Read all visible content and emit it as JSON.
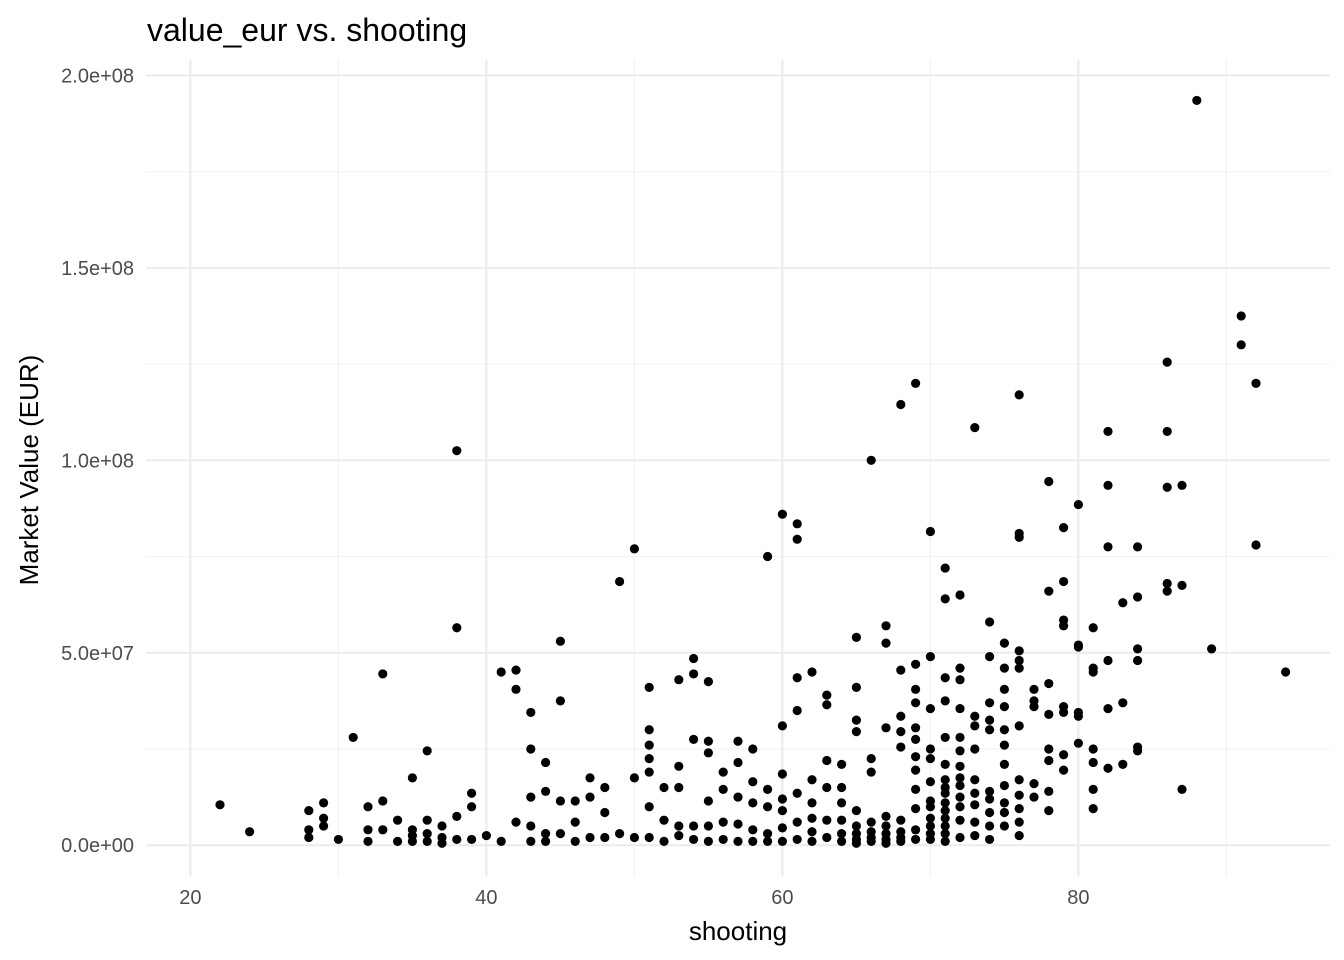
{
  "chart_data": {
    "type": "scatter",
    "title": "value_eur vs. shooting",
    "xlabel": "shooting",
    "ylabel": "Market Value (EUR)",
    "xlim": [
      17,
      97
    ],
    "ylim": [
      -8000000,
      204000000
    ],
    "x_ticks": [
      20,
      40,
      60,
      80
    ],
    "x_tick_labels": [
      "20",
      "40",
      "60",
      "80"
    ],
    "y_ticks": [
      0,
      50000000,
      100000000,
      150000000,
      200000000
    ],
    "y_tick_labels": [
      "0.0e+00",
      "5.0e+07",
      "1.0e+08",
      "1.5e+08",
      "2.0e+08"
    ],
    "grid": true,
    "legend": "none",
    "point_color": "#000000",
    "x": [
      22,
      24,
      28,
      28,
      28,
      29,
      29,
      29,
      30,
      31,
      32,
      32,
      32,
      33,
      33,
      33,
      34,
      34,
      35,
      35,
      35,
      35,
      36,
      36,
      36,
      36,
      37,
      37,
      37,
      38,
      38,
      38,
      38,
      39,
      39,
      39,
      40,
      41,
      41,
      42,
      42,
      42,
      43,
      43,
      43,
      43,
      43,
      44,
      44,
      44,
      44,
      45,
      45,
      45,
      45,
      46,
      46,
      46,
      47,
      47,
      47,
      48,
      48,
      48,
      49,
      49,
      50,
      50,
      50,
      51,
      51,
      51,
      51,
      51,
      51,
      51,
      52,
      52,
      52,
      53,
      53,
      53,
      53,
      53,
      54,
      54,
      54,
      54,
      54,
      55,
      55,
      55,
      55,
      55,
      55,
      56,
      56,
      56,
      56,
      57,
      57,
      57,
      57,
      57,
      58,
      58,
      58,
      58,
      58,
      59,
      59,
      59,
      59,
      59,
      60,
      60,
      60,
      60,
      60,
      60,
      60,
      61,
      61,
      61,
      61,
      61,
      61,
      61,
      62,
      62,
      62,
      62,
      62,
      62,
      63,
      63,
      63,
      63,
      63,
      63,
      64,
      64,
      64,
      64,
      64,
      64,
      65,
      65,
      65,
      65,
      65,
      65,
      65,
      65,
      65,
      66,
      66,
      66,
      66,
      66,
      66,
      66,
      67,
      67,
      67,
      67,
      67,
      67,
      67,
      67,
      68,
      68,
      68,
      68,
      68,
      68,
      68,
      68,
      68,
      69,
      69,
      69,
      69,
      69,
      69,
      69,
      69,
      69,
      69,
      69,
      69,
      70,
      70,
      70,
      70,
      70,
      70,
      70,
      70,
      70,
      70,
      70,
      70,
      71,
      71,
      71,
      71,
      71,
      71,
      71,
      71,
      71,
      71,
      71,
      71,
      71,
      71,
      71,
      72,
      72,
      72,
      72,
      72,
      72,
      72,
      72,
      72,
      72,
      72,
      72,
      72,
      73,
      73,
      73,
      73,
      73,
      73,
      73,
      73,
      73,
      74,
      74,
      74,
      74,
      74,
      74,
      74,
      74,
      74,
      74,
      75,
      75,
      75,
      75,
      75,
      75,
      75,
      75,
      75,
      75,
      75,
      76,
      76,
      76,
      76,
      76,
      76,
      76,
      76,
      76,
      76,
      76,
      76,
      77,
      77,
      77,
      77,
      77,
      78,
      78,
      78,
      78,
      78,
      78,
      78,
      78,
      79,
      79,
      79,
      79,
      79,
      79,
      79,
      79,
      80,
      80,
      80,
      80,
      80,
      80,
      81,
      81,
      81,
      81,
      81,
      81,
      81,
      82,
      82,
      82,
      82,
      82,
      82,
      83,
      83,
      83,
      84,
      84,
      84,
      84,
      84,
      84,
      86,
      86,
      86,
      86,
      86,
      87,
      87,
      87,
      88,
      89,
      91,
      91,
      92,
      92,
      94
    ],
    "y": [
      10500000,
      3500000,
      9000000,
      4000000,
      2000000,
      11000000,
      7000000,
      5000000,
      1500000,
      28000000,
      10000000,
      4000000,
      1000000,
      44500000,
      11500000,
      4000000,
      6500000,
      1000000,
      17500000,
      4000000,
      2500000,
      1000000,
      24500000,
      6500000,
      3000000,
      1000000,
      5000000,
      2000000,
      500000,
      102500000,
      56500000,
      7500000,
      1500000,
      13500000,
      10000000,
      1500000,
      2500000,
      45000000,
      1000000,
      45500000,
      40500000,
      6000000,
      34500000,
      25000000,
      12500000,
      5000000,
      1000000,
      21500000,
      14000000,
      3000000,
      1000000,
      53000000,
      37500000,
      11500000,
      3000000,
      11500000,
      6000000,
      1000000,
      17500000,
      12500000,
      2000000,
      15000000,
      8500000,
      2000000,
      68500000,
      3000000,
      77000000,
      17500000,
      2000000,
      41000000,
      30000000,
      26000000,
      22500000,
      19000000,
      10000000,
      2000000,
      15000000,
      6500000,
      1000000,
      43000000,
      20500000,
      15000000,
      5000000,
      2500000,
      48500000,
      44500000,
      27500000,
      5000000,
      1500000,
      42500000,
      27000000,
      24000000,
      11500000,
      5000000,
      1000000,
      19000000,
      14500000,
      6000000,
      1500000,
      27000000,
      21500000,
      12500000,
      5500000,
      1000000,
      25000000,
      16500000,
      11000000,
      4000000,
      1000000,
      75000000,
      14500000,
      10000000,
      3000000,
      1000000,
      86000000,
      31000000,
      18500000,
      12000000,
      9000000,
      4500000,
      1000000,
      83500000,
      79500000,
      43500000,
      35000000,
      13500000,
      6000000,
      1500000,
      45000000,
      17000000,
      11000000,
      7000000,
      3500000,
      1000000,
      39000000,
      36500000,
      22000000,
      15000000,
      6500000,
      2000000,
      21000000,
      15000000,
      11000000,
      6500000,
      3000000,
      1000000,
      54000000,
      41000000,
      32500000,
      29500000,
      9000000,
      5000000,
      3000000,
      1500000,
      500000,
      100000000,
      22500000,
      19000000,
      6000000,
      3500000,
      2000000,
      1000000,
      57000000,
      52500000,
      30500000,
      7500000,
      5000000,
      3000000,
      1500000,
      500000,
      114500000,
      45500000,
      33500000,
      29500000,
      25500000,
      6500000,
      3500000,
      2000000,
      1000000,
      120000000,
      47000000,
      40500000,
      37000000,
      30500000,
      27500000,
      23000000,
      19500000,
      14500000,
      9500000,
      4000000,
      1500000,
      81500000,
      49000000,
      35500000,
      25000000,
      22500000,
      16500000,
      11500000,
      10000000,
      7000000,
      5000000,
      3000000,
      1500000,
      72000000,
      64000000,
      43500000,
      37500000,
      28000000,
      21000000,
      17000000,
      15000000,
      13500000,
      11000000,
      9000000,
      7000000,
      5000000,
      3000000,
      1000000,
      65000000,
      46000000,
      43000000,
      35500000,
      28000000,
      24500000,
      20500000,
      17500000,
      15500000,
      12500000,
      10000000,
      6500000,
      2000000,
      108500000,
      33500000,
      31000000,
      25000000,
      17000000,
      13500000,
      10500000,
      6000000,
      2500000,
      58000000,
      49000000,
      37000000,
      32500000,
      30000000,
      14000000,
      12000000,
      8500000,
      5000000,
      1500000,
      52500000,
      46000000,
      40500000,
      36000000,
      30000000,
      26000000,
      21000000,
      15500000,
      11000000,
      8500000,
      5000000,
      117000000,
      81000000,
      80000000,
      50500000,
      48000000,
      46000000,
      31000000,
      17000000,
      13000000,
      9500000,
      6000000,
      2500000,
      40500000,
      37500000,
      36000000,
      16000000,
      12500000,
      94500000,
      66000000,
      42000000,
      34000000,
      25000000,
      22000000,
      14000000,
      9000000,
      82500000,
      68500000,
      58500000,
      57000000,
      36000000,
      34500000,
      23500000,
      19500000,
      88500000,
      52000000,
      51500000,
      34500000,
      33500000,
      26500000,
      56500000,
      46000000,
      45000000,
      25000000,
      21500000,
      14500000,
      9500000,
      107500000,
      93500000,
      77500000,
      48000000,
      35500000,
      20000000,
      63000000,
      37000000,
      21000000,
      77500000,
      64500000,
      51000000,
      48000000,
      25500000,
      24500000,
      125500000,
      107500000,
      93000000,
      68000000,
      66000000,
      93500000,
      67500000,
      14500000,
      193500000,
      51000000,
      137500000,
      130000000,
      120000000,
      78000000,
      45000000
    ]
  }
}
